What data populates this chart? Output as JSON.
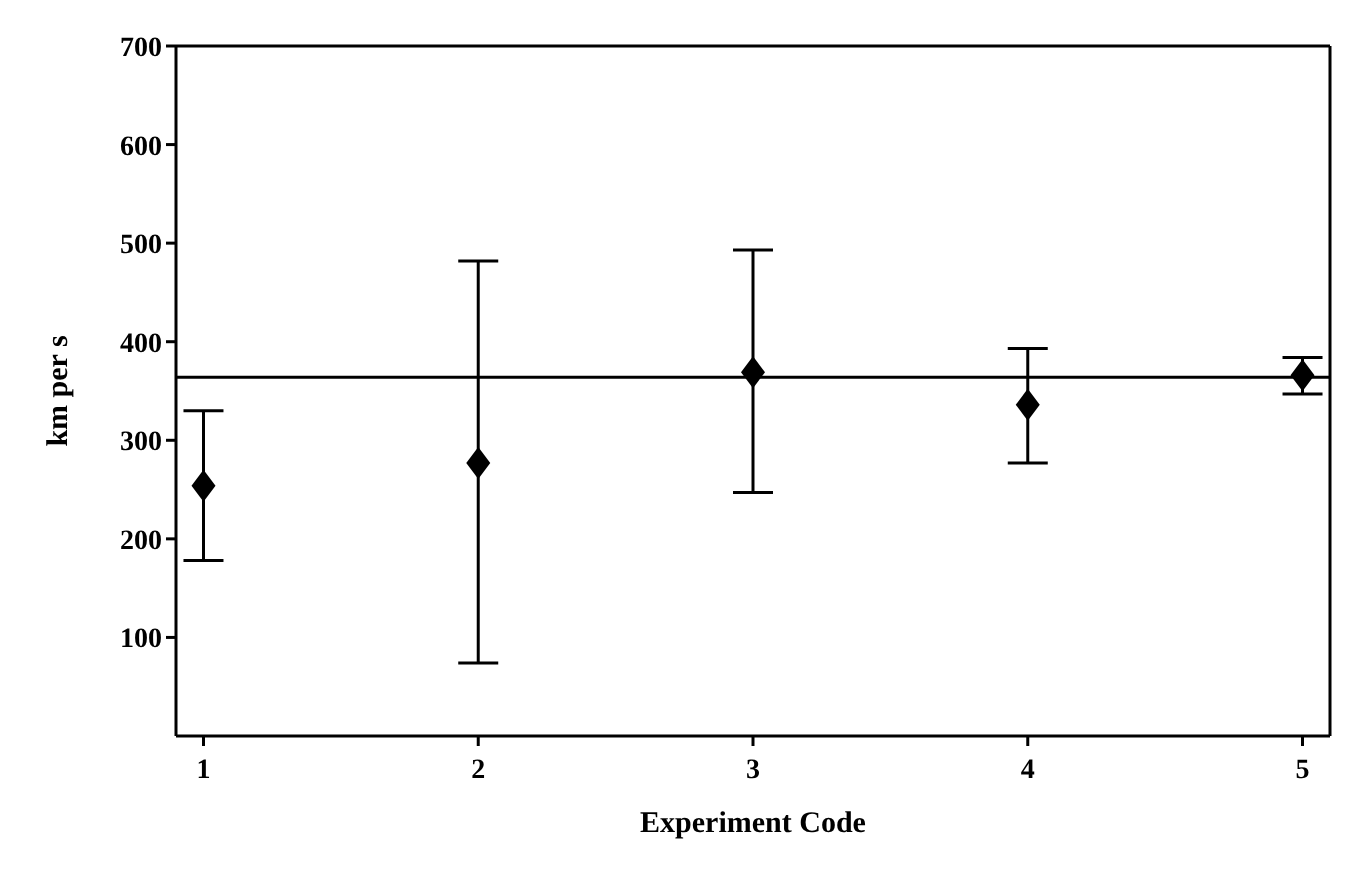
{
  "chart_data": {
    "type": "scatter",
    "xlabel": "Experiment Code",
    "ylabel": "km per s",
    "x": [
      1,
      2,
      3,
      4,
      5
    ],
    "values": [
      254,
      277,
      369,
      336,
      366
    ],
    "errors": [
      [
        178,
        330
      ],
      [
        74,
        482
      ],
      [
        247,
        493
      ],
      [
        277,
        393
      ],
      [
        347,
        384
      ]
    ],
    "color": "#000000",
    "marker": "diamond",
    "legend": false,
    "xlim": [
      0.9,
      5.1
    ],
    "xticks": [
      1,
      2,
      3,
      4,
      5
    ],
    "ylim": [
      0,
      700
    ],
    "yticks": [
      100,
      200,
      300,
      400,
      500,
      600,
      700
    ],
    "ref_lines": [
      {
        "axis": "y",
        "value": 364,
        "color": "#000000"
      }
    ]
  }
}
